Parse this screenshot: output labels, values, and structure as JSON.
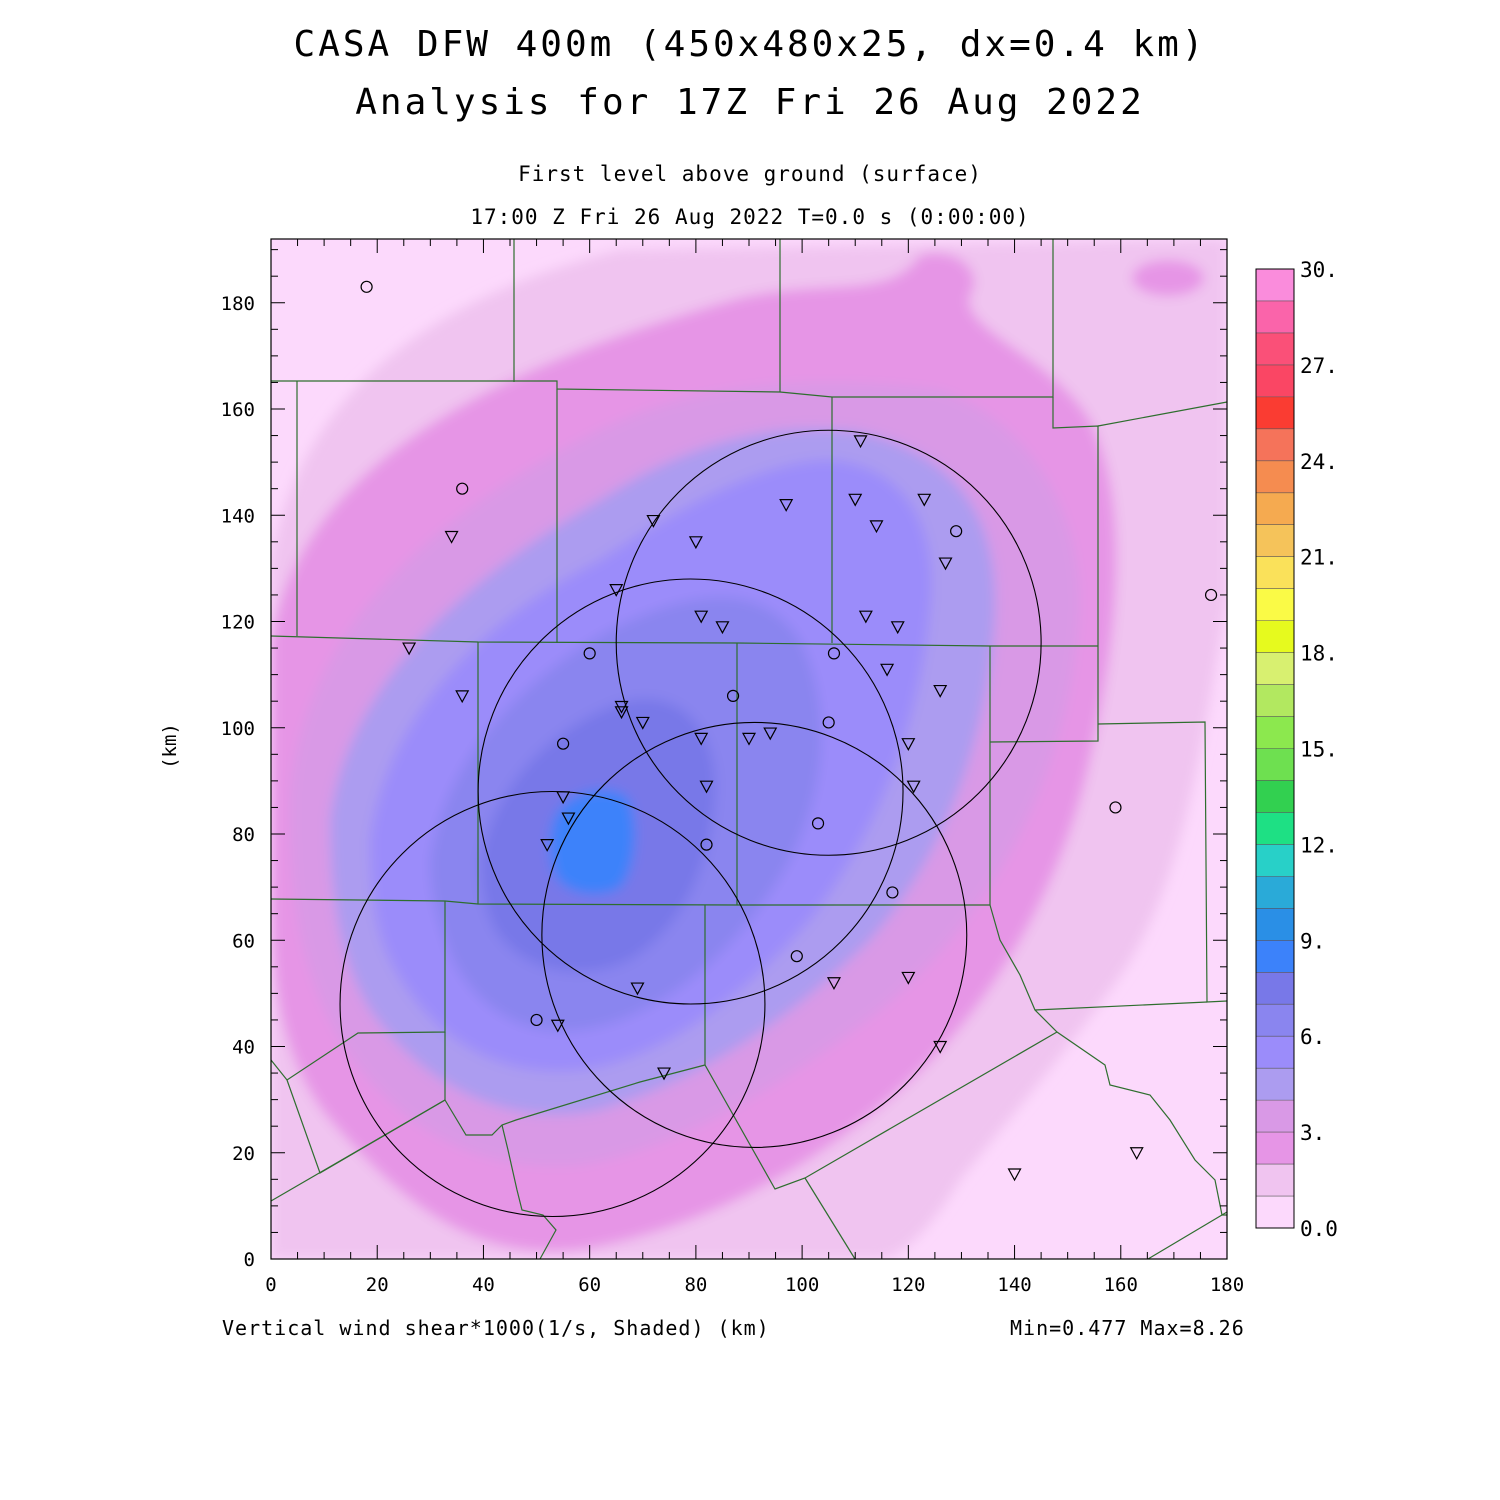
{
  "header": {
    "title_line1": "CASA DFW 400m (450x480x25, dx=0.4 km)",
    "title_line2": "Analysis for 17Z Fri 26 Aug 2022",
    "subtitle_line1": "First level above ground (surface)",
    "subtitle_line2": "17:00 Z Fri 26 Aug 2022   T=0.0 s (0:00:00)"
  },
  "footer": {
    "field_label": "Vertical wind shear*1000(1/s, Shaded)  (km)",
    "minmax": "Min=0.477 Max=8.26"
  },
  "axes": {
    "ylabel": "(km)",
    "x_ticks": [
      "0",
      "20",
      "40",
      "60",
      "80",
      "100",
      "120",
      "140",
      "160",
      "180"
    ],
    "y_ticks": [
      "0",
      "20",
      "40",
      "60",
      "80",
      "100",
      "120",
      "140",
      "160",
      "180"
    ],
    "xlim": [
      0,
      180
    ],
    "ylim": [
      0,
      192
    ]
  },
  "colorbar": {
    "labels": [
      "0.0",
      "3.",
      "6.",
      "9.",
      "12.",
      "15.",
      "18.",
      "21.",
      "24.",
      "27.",
      "30."
    ],
    "colors": [
      "#fcd9fc",
      "#f0c4f0",
      "#e695e6",
      "#d999e6",
      "#ac9cf0",
      "#9b8cfa",
      "#8a85ef",
      "#7878e8",
      "#3c82fa",
      "#2a8fe6",
      "#2aaad8",
      "#28d0c8",
      "#1ee084",
      "#32d050",
      "#6ee050",
      "#8ce84e",
      "#b2e860",
      "#d8f070",
      "#e6fa1e",
      "#fafa46",
      "#fae15a",
      "#f5c35a",
      "#f5aa50",
      "#f58c50",
      "#f5735a",
      "#fa3c32",
      "#fa4664",
      "#fa5078",
      "#fa64aa",
      "#fa8cdc"
    ]
  },
  "stations": {
    "circles": [
      [
        18,
        183
      ],
      [
        36,
        145
      ],
      [
        129,
        137
      ],
      [
        177,
        125
      ],
      [
        60,
        114
      ],
      [
        106,
        114
      ],
      [
        87,
        106
      ],
      [
        105,
        101
      ],
      [
        55,
        97
      ],
      [
        103,
        82
      ],
      [
        82,
        78
      ],
      [
        117,
        69
      ],
      [
        99,
        57
      ],
      [
        50,
        45
      ],
      [
        159,
        85
      ]
    ],
    "triangles": [
      [
        111,
        154
      ],
      [
        97,
        142
      ],
      [
        110,
        143
      ],
      [
        123,
        143
      ],
      [
        72,
        139
      ],
      [
        80,
        135
      ],
      [
        114,
        138
      ],
      [
        127,
        131
      ],
      [
        65,
        126
      ],
      [
        81,
        121
      ],
      [
        85,
        119
      ],
      [
        112,
        121
      ],
      [
        118,
        119
      ],
      [
        26,
        115
      ],
      [
        116,
        111
      ],
      [
        36,
        106
      ],
      [
        66,
        104
      ],
      [
        66,
        103
      ],
      [
        70,
        101
      ],
      [
        126,
        107
      ],
      [
        81,
        98
      ],
      [
        90,
        98
      ],
      [
        94,
        99
      ],
      [
        120,
        97
      ],
      [
        82,
        89
      ],
      [
        121,
        89
      ],
      [
        55,
        87
      ],
      [
        56,
        83
      ],
      [
        52,
        78
      ],
      [
        69,
        51
      ],
      [
        106,
        52
      ],
      [
        120,
        53
      ],
      [
        54,
        44
      ],
      [
        126,
        40
      ],
      [
        74,
        35
      ],
      [
        34,
        136
      ],
      [
        163,
        20
      ],
      [
        140,
        16
      ]
    ]
  },
  "radar_rings": [
    {
      "center": [
        105,
        116
      ],
      "radius": 40
    },
    {
      "center": [
        79,
        88
      ],
      "radius": 40
    },
    {
      "center": [
        91,
        61
      ],
      "radius": 40
    },
    {
      "center": [
        53,
        48
      ],
      "radius": 40
    }
  ]
}
